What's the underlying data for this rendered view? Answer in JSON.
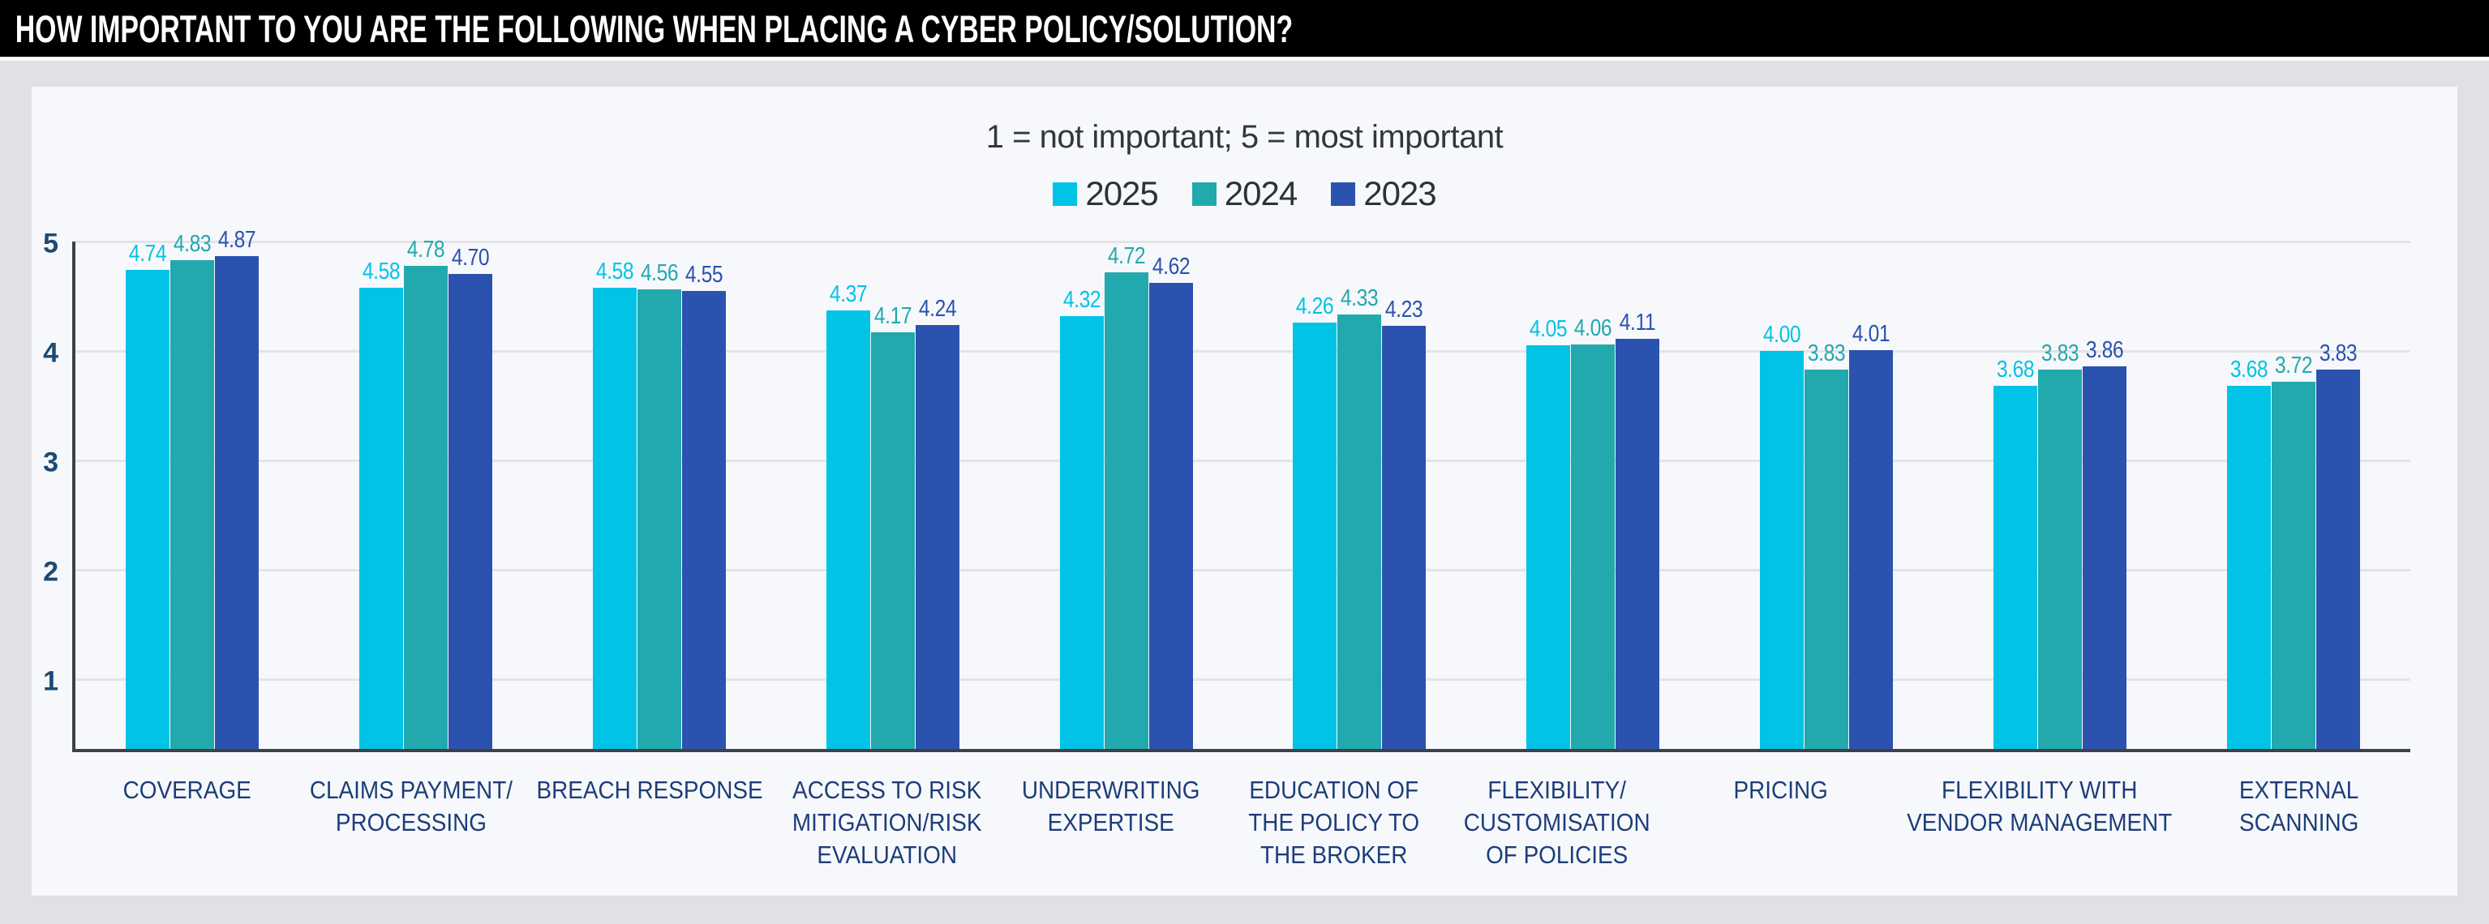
{
  "title_bar": {
    "title": "HOW IMPORTANT TO YOU ARE THE FOLLOWING WHEN PLACING A CYBER POLICY/SOLUTION?",
    "background": "#000000",
    "text_color": "#ffffff"
  },
  "legend": {
    "position": "top-center",
    "items": [
      {
        "label": "2025",
        "color": "#00c3e6"
      },
      {
        "label": "2024",
        "color": "#21a9ae"
      },
      {
        "label": "2023",
        "color": "#2b52ae"
      }
    ]
  },
  "chart_data": {
    "type": "bar",
    "title": "HOW IMPORTANT TO YOU ARE THE FOLLOWING WHEN PLACING A CYBER POLICY/SOLUTION?",
    "subtitle": "1 = not important; 5 = most important",
    "categories": [
      [
        "COVERAGE"
      ],
      [
        "CLAIMS PAYMENT/",
        "PROCESSING"
      ],
      [
        "BREACH RESPONSE"
      ],
      [
        "ACCESS TO RISK",
        "MITIGATION/RISK",
        "EVALUATION"
      ],
      [
        "UNDERWRITING",
        "EXPERTISE"
      ],
      [
        "EDUCATION OF",
        "THE POLICY TO",
        "THE BROKER"
      ],
      [
        "FLEXIBILITY/",
        "CUSTOMISATION",
        "OF POLICIES"
      ],
      [
        "PRICING"
      ],
      [
        "FLEXIBILITY WITH",
        "VENDOR MANAGEMENT"
      ],
      [
        "EXTERNAL",
        "SCANNING"
      ]
    ],
    "series": [
      {
        "name": "2025",
        "color": "#00c3e6",
        "values": [
          4.74,
          4.58,
          4.58,
          4.37,
          4.32,
          4.26,
          4.05,
          4.0,
          3.68,
          3.68
        ]
      },
      {
        "name": "2024",
        "color": "#21a9ae",
        "values": [
          4.83,
          4.78,
          4.56,
          4.17,
          4.72,
          4.33,
          4.06,
          3.83,
          3.83,
          3.72
        ]
      },
      {
        "name": "2023",
        "color": "#2b52ae",
        "values": [
          4.87,
          4.7,
          4.55,
          4.24,
          4.62,
          4.23,
          4.11,
          4.01,
          3.86,
          3.83
        ]
      }
    ],
    "yticks": [
      5,
      4,
      3,
      2,
      1
    ],
    "ylim": [
      0.36,
      5
    ],
    "value_label_decimals": 2,
    "grid": "horizontal",
    "legend_position": "top-center",
    "colors": {
      "panel_background": "#f7f8fb",
      "page_background": "#dfe1e4",
      "axis_line": "#3d4248",
      "gridline": "#e3e4e7",
      "ytick_text": "#1d4a73",
      "category_text": "#1c3d7a",
      "subtitle_text": "#33373d",
      "legend_text": "#2e3238"
    }
  }
}
